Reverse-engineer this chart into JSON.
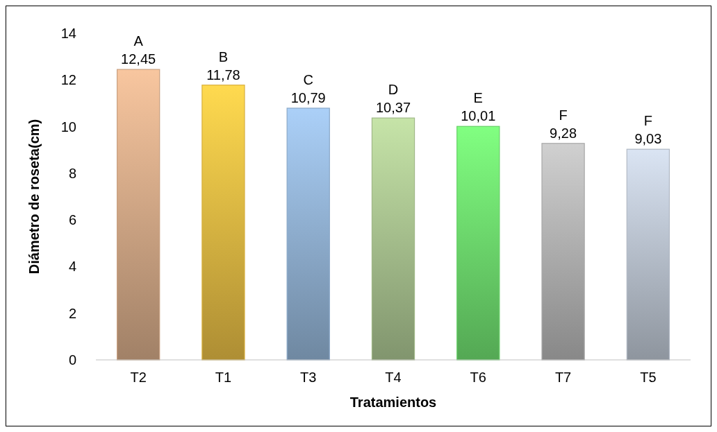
{
  "chart_data": {
    "type": "bar",
    "xlabel": "Tratamientos",
    "ylabel": "Diámetro de roseta(cm)",
    "categories": [
      "T2",
      "T1",
      "T3",
      "T4",
      "T6",
      "T7",
      "T5"
    ],
    "values": [
      12.45,
      11.78,
      10.79,
      10.37,
      10.01,
      9.28,
      9.03
    ],
    "value_labels": [
      "12,45",
      "11,78",
      "10,79",
      "10,37",
      "10,01",
      "9,28",
      "9,03"
    ],
    "colors": [
      "#c8a080",
      "#d8b040",
      "#8aa8c8",
      "#a0b888",
      "#68d068",
      "#a8a8a8",
      "#b0b8c4"
    ],
    "ylim": [
      0,
      14
    ],
    "yticks": [
      0,
      2,
      4,
      6,
      8,
      10,
      12,
      14
    ],
    "grid": false,
    "annotations": [
      {
        "text": "A",
        "x": "T2",
        "y": 12.45
      },
      {
        "text": "B",
        "x": "T1",
        "y": 11.78
      },
      {
        "text": "C",
        "x": "T3",
        "y": 10.79
      },
      {
        "text": "D",
        "x": "T4",
        "y": 10.37
      },
      {
        "text": "E",
        "x": "T6",
        "y": 10.01
      },
      {
        "text": "F",
        "x": "T7",
        "y": 9.28
      },
      {
        "text": "F",
        "x": "T5",
        "y": 9.03
      }
    ]
  }
}
